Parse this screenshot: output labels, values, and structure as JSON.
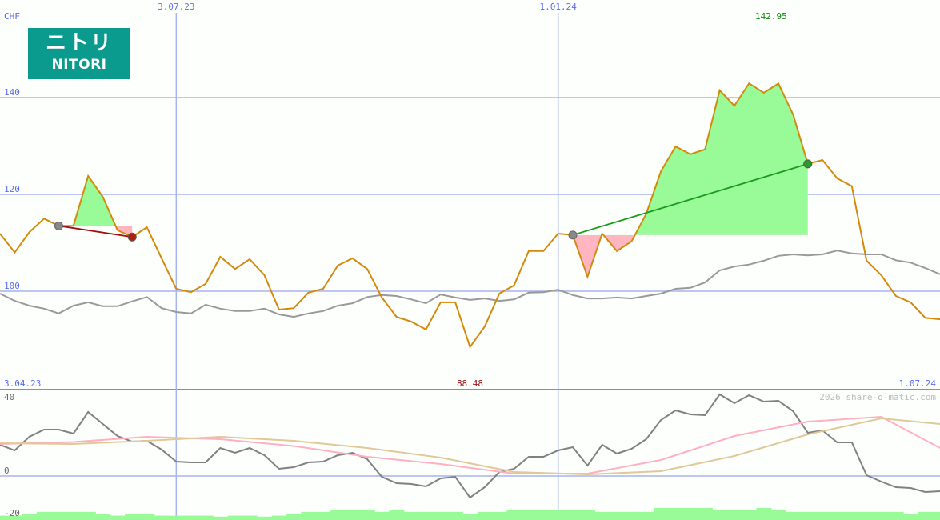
{
  "chart_data": [
    {
      "type": "line",
      "currency_label": "CHF",
      "yticks": [
        100,
        120,
        140
      ],
      "ylim": [
        79.7,
        160.2
      ],
      "x_top_labels": [
        {
          "index": 12,
          "label": "3.07.23"
        },
        {
          "index": 38,
          "label": "1.01.24"
        }
      ],
      "x_range_labels": {
        "start": "3.04.23",
        "end": "1.07.24"
      },
      "min_label": {
        "index": 32,
        "value": "88.48"
      },
      "max_label": {
        "index": 52.5,
        "value": "142.95"
      },
      "grid": true,
      "series": [
        {
          "role": "price",
          "color": "#d4890a",
          "values": [
            111.9,
            108.0,
            112.2,
            115.0,
            113.5,
            113.5,
            123.8,
            119.5,
            112.6,
            111.2,
            113.2,
            106.8,
            100.5,
            99.8,
            101.5,
            107.1,
            104.6,
            106.6,
            103.3,
            96.2,
            96.5,
            99.7,
            100.5,
            105.3,
            106.8,
            104.6,
            98.7,
            94.7,
            93.7,
            92.1,
            97.7,
            97.7,
            88.48,
            92.7,
            99.5,
            101.2,
            108.3,
            108.3,
            111.9,
            111.6,
            103.0,
            111.9,
            108.3,
            110.3,
            116.0,
            124.8,
            129.9,
            128.3,
            129.3,
            141.5,
            138.3,
            142.95,
            141.0,
            142.9,
            136.5,
            126.3,
            127.1,
            123.3,
            121.7,
            106.3,
            103.3,
            99.0,
            97.7,
            94.5,
            94.2
          ]
        },
        {
          "role": "benchmark",
          "color": "#999999",
          "values": [
            99.5,
            98.0,
            97.0,
            96.4,
            95.4,
            97.0,
            97.7,
            96.9,
            96.9,
            97.9,
            98.8,
            96.5,
            95.7,
            95.4,
            97.2,
            96.4,
            95.9,
            95.9,
            96.4,
            95.2,
            94.7,
            95.4,
            95.9,
            97.0,
            97.5,
            98.8,
            99.2,
            99.0,
            98.3,
            97.5,
            99.3,
            98.7,
            98.2,
            98.5,
            98.0,
            98.3,
            99.7,
            99.8,
            100.3,
            99.2,
            98.5,
            98.5,
            98.7,
            98.5,
            99.0,
            99.5,
            100.5,
            100.7,
            101.8,
            104.3,
            105.1,
            105.5,
            106.3,
            107.3,
            107.6,
            107.4,
            107.6,
            108.4,
            107.8,
            107.6,
            107.6,
            106.4,
            105.9,
            104.8,
            103.5
          ]
        }
      ],
      "trades": [
        {
          "entry_index": 4,
          "exit_index": 9,
          "entry_value": 113.5,
          "exit_value": 111.2,
          "line_color": "#a01010",
          "exit_color": "#b02010"
        },
        {
          "entry_index": 39,
          "exit_index": 55,
          "entry_value": 111.6,
          "exit_value": 126.3,
          "line_color": "#1a9a1a",
          "exit_color": "#2a9a2a"
        }
      ],
      "colors": {
        "gain_fill": "#98fb98",
        "loss_fill": "#ffb6c1",
        "grid": "#a8b4f0",
        "axis_text": "#5a6cf0",
        "min_text": "#a01010",
        "max_text": "#0a8a0a"
      }
    },
    {
      "type": "line",
      "yticks": [
        -20,
        0,
        40
      ],
      "ylim": [
        -21.2,
        38.0
      ],
      "watermark": "2026 share-o-matic.com",
      "series": [
        {
          "role": "momentum",
          "color": "#808080",
          "values": [
            15.6,
            12.8,
            19.6,
            23.2,
            23.2,
            21.2,
            32,
            26,
            20,
            17.2,
            17.6,
            13.2,
            7.2,
            6.8,
            6.8,
            14,
            11.6,
            14,
            10.4,
            3.6,
            4.4,
            6.8,
            7.2,
            10.4,
            11.6,
            8.4,
            -0.4,
            -3.6,
            -4,
            -5.2,
            -1.2,
            -0.4,
            -10.8,
            -5.6,
            2,
            3.6,
            9.6,
            9.6,
            12.8,
            14.4,
            5.2,
            15.6,
            11.2,
            13.6,
            18.4,
            28,
            32.8,
            30.8,
            30.4,
            40.8,
            36.4,
            40.4,
            37.2,
            37.6,
            32.4,
            21.6,
            22.8,
            16.8,
            16.8,
            0.4,
            -2.8,
            -5.6,
            -6,
            -8,
            -7.6
          ]
        },
        {
          "role": "average-fast",
          "color": "#ffb0c0",
          "index_step": 5,
          "values": [
            16,
            17,
            19.6,
            18.4,
            15,
            9.6,
            6,
            1.2,
            1.2,
            8,
            20,
            27.2,
            29.6,
            14
          ]
        },
        {
          "role": "average-slow",
          "color": "#e0c898",
          "index_step": 5,
          "values": [
            16.4,
            16,
            17.6,
            19.6,
            17.6,
            14,
            9.2,
            2,
            0.8,
            2.4,
            10,
            20.8,
            28.8,
            26
          ]
        }
      ],
      "volume": {
        "color": "#98fb98",
        "values": [
          1,
          1,
          2,
          3,
          3,
          3,
          3,
          2,
          1,
          2,
          2,
          1,
          1,
          1,
          1,
          0.5,
          1,
          1,
          0.5,
          1,
          2,
          3,
          3,
          4,
          4,
          4,
          3,
          4,
          3,
          3,
          3,
          3,
          2,
          3,
          3,
          4,
          4,
          4,
          4,
          4,
          4,
          3,
          3,
          3,
          3,
          5,
          5,
          5,
          5,
          4,
          4,
          4,
          5,
          4,
          3,
          3,
          3,
          3,
          3,
          3,
          3,
          3,
          2,
          3,
          3
        ]
      }
    }
  ],
  "logo": {
    "text_jp": "ニトリ",
    "text_en": "NITORI",
    "color": "#0a9a8e"
  }
}
